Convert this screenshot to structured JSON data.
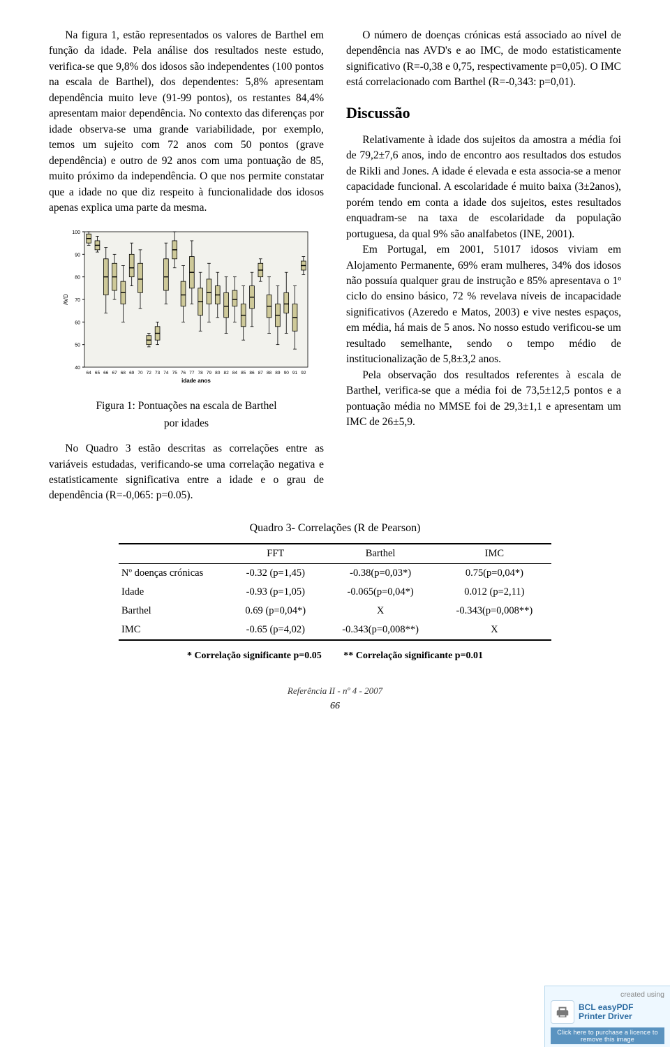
{
  "left": {
    "p1": "Na figura 1, estão representados os valores de Barthel em função da idade. Pela análise dos resultados neste estudo, verifica-se que 9,8% dos idosos são independentes (100 pontos na escala de Barthel), dos dependentes: 5,8% apresentam dependência muito leve (91-99 pontos), os restantes 84,4% apresentam maior dependência. No contexto das diferenças por idade observa-se uma grande variabilidade, por exemplo, temos um sujeito com 72 anos com 50 pontos (grave dependência) e outro de 92 anos com uma pontuação de 85, muito próximo da independência. O que nos permite constatar que a idade no que diz respeito à funcionalidade dos idosos apenas explica uma parte da mesma.",
    "figcap1": "Figura 1: Pontuações na escala de Barthel",
    "figcap2": "por idades",
    "p2": "No Quadro 3 estão descritas as correlações entre as variáveis estudadas, verificando-se uma correlação negativa e estatisticamente significativa entre a idade e o grau de dependência (R=-0,065: p=0.05)."
  },
  "right": {
    "p1": "O número de doenças crónicas está associado ao nível de dependência nas AVD's e ao IMC, de modo estatisticamente significativo (R=-0,38 e 0,75, respectivamente p=0,05). O IMC está correlacionado com Barthel (R=-0,343: p=0,01).",
    "h2": "Discussão",
    "p2": "Relativamente à idade dos sujeitos da amostra a média foi de 79,2±7,6 anos, indo de encontro aos resultados dos estudos de Rikli and Jones. A idade é elevada e esta associa-se a menor capacidade funcional. A escolaridade é muito baixa (3±2anos), porém tendo em conta a idade dos sujeitos, estes resultados enquadram-se na taxa de escolaridade da população portuguesa, da qual 9% são analfabetos (INE, 2001).",
    "p3": "Em Portugal, em 2001, 51017 idosos viviam em Alojamento Permanente, 69% eram mulheres, 34% dos idosos não possuía qualquer grau de instrução e 85% apresentava o 1º ciclo do ensino básico, 72 % revelava níveis de incapacidade significativos (Azeredo e Matos, 2003) e vive nestes espaços, em média, há mais de 5 anos. No nosso estudo verificou-se um resultado semelhante, sendo o tempo médio de institucionalização de 5,8±3,2 anos.",
    "p4": "Pela observação dos resultados referentes à escala de Barthel, verifica-se que a média foi de 73,5±12,5 pontos e a pontuação média no MMSE foi de 29,3±1,1 e apresentam um IMC de 26±5,9."
  },
  "chart": {
    "type": "boxplot",
    "xlabel": "idade anos",
    "ylabel": "AVD",
    "ylim": [
      40,
      100
    ],
    "yticks": [
      40,
      50,
      60,
      70,
      80,
      90,
      100
    ],
    "categories": [
      "64",
      "65",
      "66",
      "67",
      "68",
      "69",
      "70",
      "72",
      "73",
      "74",
      "75",
      "76",
      "77",
      "78",
      "79",
      "80",
      "82",
      "84",
      "85",
      "86",
      "87",
      "88",
      "89",
      "90",
      "91",
      "92"
    ],
    "bg": "#f2f2ed",
    "box_fill": "#cec999",
    "box_stroke": "#000000",
    "axis_color": "#000000",
    "label_fontsize": 7,
    "axis_label_fontsize": 8,
    "boxes": [
      {
        "q1": 95,
        "med": 97,
        "q3": 99,
        "lo": 94,
        "hi": 100
      },
      {
        "q1": 92,
        "med": 94,
        "q3": 96,
        "lo": 91,
        "hi": 98
      },
      {
        "q1": 72,
        "med": 80,
        "q3": 88,
        "lo": 64,
        "hi": 93
      },
      {
        "q1": 74,
        "med": 80,
        "q3": 86,
        "lo": 70,
        "hi": 90
      },
      {
        "q1": 68,
        "med": 73,
        "q3": 78,
        "lo": 60,
        "hi": 85
      },
      {
        "q1": 80,
        "med": 84,
        "q3": 90,
        "lo": 76,
        "hi": 95
      },
      {
        "q1": 73,
        "med": 79,
        "q3": 86,
        "lo": 66,
        "hi": 92
      },
      {
        "q1": 50,
        "med": 52,
        "q3": 54,
        "lo": 49,
        "hi": 55
      },
      {
        "q1": 52,
        "med": 55,
        "q3": 58,
        "lo": 50,
        "hi": 60
      },
      {
        "q1": 74,
        "med": 80,
        "q3": 88,
        "lo": 68,
        "hi": 95
      },
      {
        "q1": 88,
        "med": 92,
        "q3": 96,
        "lo": 84,
        "hi": 100
      },
      {
        "q1": 67,
        "med": 72,
        "q3": 78,
        "lo": 60,
        "hi": 85
      },
      {
        "q1": 75,
        "med": 82,
        "q3": 89,
        "lo": 68,
        "hi": 96
      },
      {
        "q1": 63,
        "med": 69,
        "q3": 75,
        "lo": 56,
        "hi": 82
      },
      {
        "q1": 68,
        "med": 73,
        "q3": 79,
        "lo": 60,
        "hi": 86
      },
      {
        "q1": 68,
        "med": 72,
        "q3": 76,
        "lo": 62,
        "hi": 82
      },
      {
        "q1": 62,
        "med": 67,
        "q3": 73,
        "lo": 55,
        "hi": 80
      },
      {
        "q1": 67,
        "med": 70,
        "q3": 74,
        "lo": 60,
        "hi": 80
      },
      {
        "q1": 58,
        "med": 63,
        "q3": 68,
        "lo": 52,
        "hi": 76
      },
      {
        "q1": 66,
        "med": 71,
        "q3": 76,
        "lo": 58,
        "hi": 82
      },
      {
        "q1": 80,
        "med": 83,
        "q3": 86,
        "lo": 78,
        "hi": 88
      },
      {
        "q1": 62,
        "med": 67,
        "q3": 72,
        "lo": 55,
        "hi": 80
      },
      {
        "q1": 58,
        "med": 63,
        "q3": 68,
        "lo": 50,
        "hi": 76
      },
      {
        "q1": 64,
        "med": 68,
        "q3": 73,
        "lo": 55,
        "hi": 82
      },
      {
        "q1": 56,
        "med": 62,
        "q3": 68,
        "lo": 48,
        "hi": 76
      },
      {
        "q1": 83,
        "med": 85,
        "q3": 87,
        "lo": 81,
        "hi": 89
      }
    ]
  },
  "table": {
    "title": "Quadro 3- Correlações (R de Pearson)",
    "columns": [
      "",
      "FFT",
      "Barthel",
      "IMC"
    ],
    "rows": [
      [
        "Nº doenças crónicas",
        "-0.32 (p=1,45)",
        "-0.38(p=0,03*)",
        "0.75(p=0,04*)"
      ],
      [
        "Idade",
        "-0.93 (p=1,05)",
        "-0.065(p=0,04*)",
        "0.012 (p=2,11)"
      ],
      [
        "Barthel",
        "0.69 (p=0,04*)",
        "X",
        "-0.343(p=0,008**)"
      ],
      [
        "IMC",
        "-0.65  (p=4,02)",
        "-0.343(p=0,008**)",
        "X"
      ]
    ],
    "note1": "* Correlação significante p=0.05",
    "note2": "** Correlação significante p=0.01"
  },
  "footer": {
    "ref": "Referência II - nº 4 - 2007",
    "page": "66"
  },
  "watermark": {
    "top": "created using",
    "l1": "BCL easyPDF",
    "l2": "Printer Driver",
    "bar": "Click here to purchase a licence to remove this image"
  }
}
